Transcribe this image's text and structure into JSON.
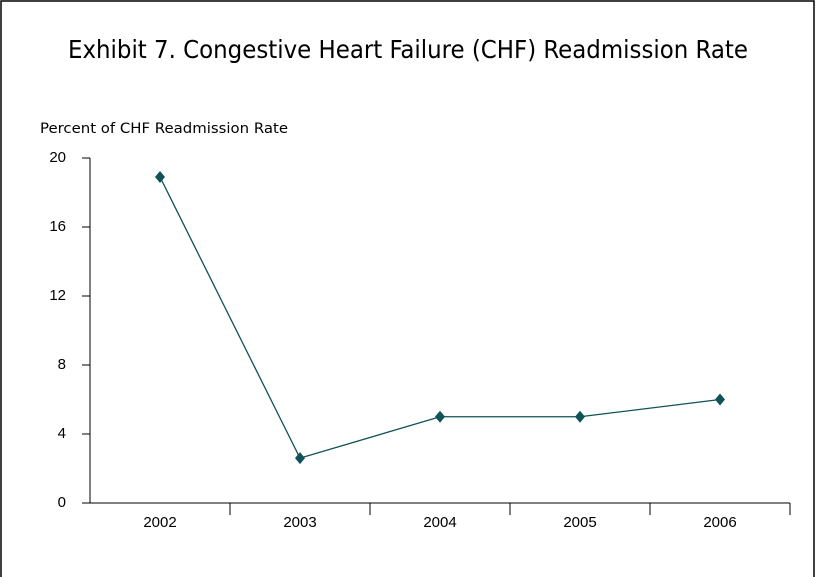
{
  "chart_data": {
    "type": "line",
    "title": "Exhibit 7. Congestive Heart Failure (CHF) Readmission Rate",
    "y_label": "Percent of CHF Readmission Rate",
    "categories": [
      "2002",
      "2003",
      "2004",
      "2005",
      "2006"
    ],
    "values": [
      18.9,
      2.6,
      5.0,
      5.0,
      6.0
    ],
    "color": "#0f5257",
    "ylim": [
      0,
      20
    ],
    "yticks": [
      0,
      4,
      8,
      12,
      16,
      20
    ],
    "grid": false
  }
}
